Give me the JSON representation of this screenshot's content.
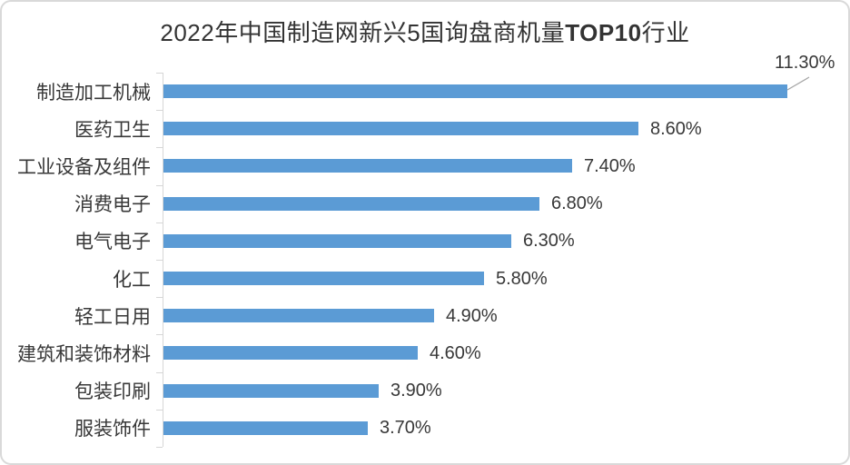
{
  "chart_data": {
    "type": "bar",
    "orientation": "horizontal",
    "title": "2022年中国制造网新兴5国询盘商机量TOP10行业",
    "title_parts": {
      "prefix": "2022年中国制造网新兴5国询盘商机量",
      "bold": "TOP10",
      "suffix": "行业"
    },
    "categories": [
      "制造加工机械",
      "医药卫生",
      "工业设备及组件",
      "消费电子",
      "电气电子",
      "化工",
      "轻工日用",
      "建筑和装饰材料",
      "包装印刷",
      "服装饰件"
    ],
    "values": [
      11.3,
      8.6,
      7.4,
      6.8,
      6.3,
      5.8,
      4.9,
      4.6,
      3.9,
      3.7
    ],
    "data_labels": [
      "11.30%",
      "8.60%",
      "7.40%",
      "6.80%",
      "6.30%",
      "5.80%",
      "4.90%",
      "4.60%",
      "3.90%",
      "3.70%"
    ],
    "xlabel": "",
    "ylabel": "",
    "xlim": [
      0,
      12.3
    ],
    "grid": false,
    "legend": false,
    "callout_index": 0,
    "colors": {
      "bar": "#5B9BD5",
      "axis": "#D6D6D6",
      "text": "#383838",
      "leader_line": "#A6A6A6",
      "border": "#D9D9D9"
    }
  }
}
